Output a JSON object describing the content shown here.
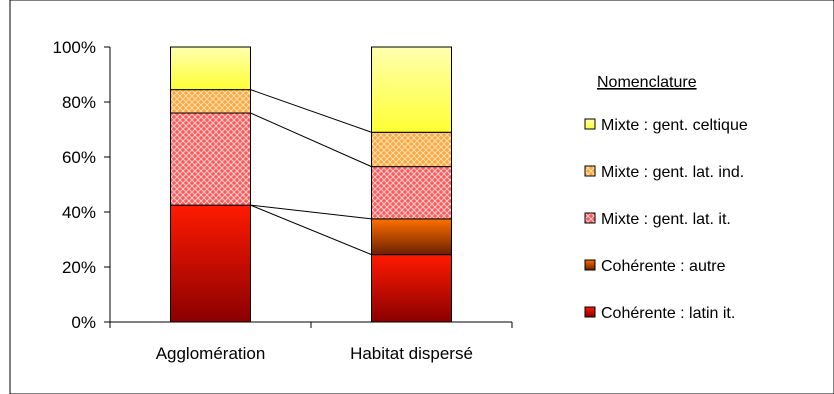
{
  "chart_data": {
    "type": "bar",
    "stacked": "percent",
    "categories": [
      "Agglomération",
      "Habitat dispersé"
    ],
    "ylim": [
      0,
      100
    ],
    "y_ticks": [
      "0%",
      "20%",
      "40%",
      "60%",
      "80%",
      "100%"
    ],
    "legend_title": "Nomenclature",
    "legend_position": "right",
    "grid": false,
    "series": [
      {
        "name": "Cohérente : latin it.",
        "values": [
          42.5,
          24.5
        ],
        "color": "#e00000"
      },
      {
        "name": "Cohérente : autre",
        "values": [
          0,
          13.0
        ],
        "color": "#cc4400"
      },
      {
        "name": "Mixte : gent. lat. it.",
        "values": [
          33.5,
          19.0
        ],
        "color": "#ff6666"
      },
      {
        "name": "Mixte : gent. lat. ind.",
        "values": [
          8.5,
          12.5
        ],
        "color": "#ffb050"
      },
      {
        "name": "Mixte : gent. celtique",
        "values": [
          15.5,
          31.0
        ],
        "color": "#ffff66"
      }
    ],
    "legend_order": [
      4,
      3,
      2,
      1,
      0
    ],
    "connector_lines": true
  }
}
